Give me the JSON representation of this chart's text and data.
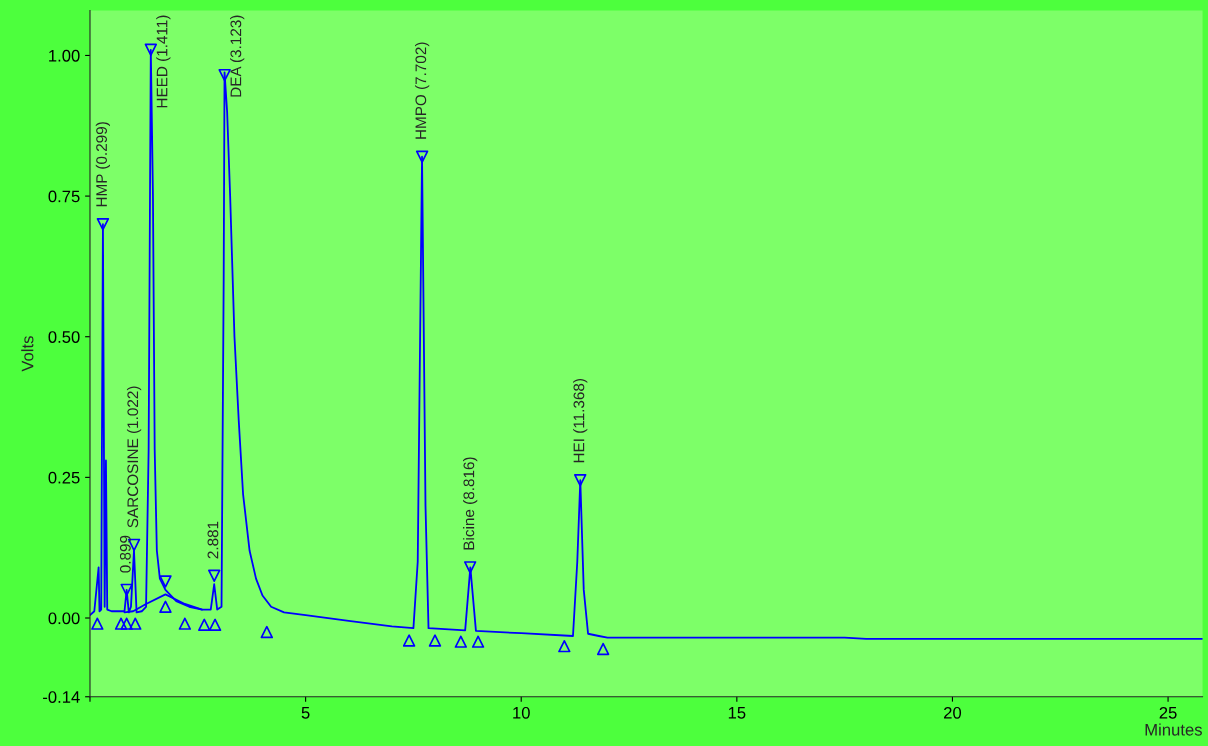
{
  "chart_data": {
    "type": "line",
    "xlabel": "Minutes",
    "ylabel": "Volts",
    "xlim": [
      0,
      25.8
    ],
    "ylim": [
      -0.14,
      1.08
    ],
    "xticks": [
      {
        "value": 0,
        "label": null
      },
      5,
      10,
      15,
      20,
      25
    ],
    "yticks": [
      {
        "value": -0.14,
        "label": "-0.14"
      },
      {
        "value": 0,
        "label": "0.00"
      },
      {
        "value": 0.25,
        "label": "0.25"
      },
      {
        "value": 0.5,
        "label": "0.50"
      },
      {
        "value": 0.75,
        "label": "0.75"
      },
      {
        "value": 1,
        "label": "1.00"
      }
    ],
    "grid": false,
    "legend": false,
    "series": [
      {
        "color": "#0000ff",
        "marker": "none",
        "line_style": "solid",
        "x": [
          0,
          0.1,
          0.2,
          0.22,
          0.26,
          0.3,
          0.34,
          0.37,
          0.4,
          0.5,
          0.7,
          0.8,
          0.85,
          0.9,
          0.95,
          1.02,
          1.08,
          1.2,
          1.3,
          1.36,
          1.41,
          1.46,
          1.5,
          1.55,
          1.62,
          1.75,
          2.0,
          2.3,
          2.6,
          2.8,
          2.88,
          2.95,
          3.05,
          3.1,
          3.12,
          3.18,
          3.25,
          3.35,
          3.45,
          3.55,
          3.7,
          3.85,
          4.0,
          4.2,
          4.5,
          5,
          6,
          7,
          7.5,
          7.6,
          7.7,
          7.78,
          7.85,
          8.7,
          8.82,
          8.95,
          10,
          11.2,
          11.3,
          11.37,
          11.45,
          11.55,
          11.8,
          12,
          17.5,
          18,
          25.8
        ],
        "values": [
          0.005,
          0.012,
          0.09,
          0.012,
          0.015,
          0.7,
          0.02,
          0.28,
          0.015,
          0.012,
          0.012,
          0.012,
          0.05,
          0.01,
          0.02,
          0.12,
          0.01,
          0.012,
          0.02,
          0.3,
          1.01,
          0.75,
          0.3,
          0.12,
          0.07,
          0.05,
          0.03,
          0.02,
          0.015,
          0.015,
          0.06,
          0.015,
          0.02,
          0.6,
          0.97,
          0.9,
          0.75,
          0.5,
          0.35,
          0.22,
          0.12,
          0.07,
          0.04,
          0.02,
          0.01,
          0.005,
          -0.005,
          -0.015,
          -0.018,
          0.1,
          0.82,
          0.2,
          -0.018,
          -0.022,
          0.09,
          -0.023,
          -0.027,
          -0.032,
          0.1,
          0.245,
          0.05,
          -0.028,
          -0.032,
          -0.035,
          -0.035,
          -0.037,
          -0.037
        ]
      },
      {
        "color": "#0000ff",
        "marker": "none",
        "line_style": "solid",
        "x": [
          0.8,
          1.0,
          1.3,
          1.75,
          2.2,
          2.6
        ],
        "values": [
          0.01,
          0.012,
          0.025,
          0.042,
          0.025,
          0.015
        ]
      },
      {
        "type": "scatter",
        "color": "#0000ff",
        "marker": "triangle_down",
        "x": [
          0.299,
          0.85,
          1.022,
          1.411,
          1.75,
          2.881,
          3.123,
          7.702,
          8.816,
          11.368
        ],
        "values": [
          0.7,
          0.05,
          0.13,
          1.01,
          0.065,
          0.075,
          0.965,
          0.82,
          0.09,
          0.245
        ]
      },
      {
        "type": "scatter",
        "color": "#0000ff",
        "marker": "triangle",
        "x": [
          0.17,
          0.72,
          0.85,
          1.05,
          1.75,
          2.2,
          2.65,
          2.9,
          4.1,
          7.4,
          8.0,
          8.6,
          9.0,
          11.0,
          11.9
        ],
        "values": [
          -0.01,
          -0.01,
          -0.01,
          -0.01,
          0.02,
          -0.01,
          -0.012,
          -0.012,
          -0.025,
          -0.04,
          -0.04,
          -0.042,
          -0.042,
          -0.05,
          -0.055
        ]
      }
    ],
    "annotations": [
      {
        "text": "HMP (0.299)",
        "x": 0.299,
        "y": 0.7
      },
      {
        "text": "0.899",
        "x": 0.85,
        "y": 0.05
      },
      {
        "text": "SARCOSINE (1.022)",
        "x": 1.022,
        "y": 0.13
      },
      {
        "text": "HEED (1.411)",
        "x": 1.411,
        "y": 1.01
      },
      {
        "text": "2.881",
        "x": 2.881,
        "y": 0.075
      },
      {
        "text": "DEA (3.123)",
        "x": 3.123,
        "y": 0.965
      },
      {
        "text": "HMPO (7.702)",
        "x": 7.702,
        "y": 0.82
      },
      {
        "text": "Bicine (8.816)",
        "x": 8.816,
        "y": 0.09
      },
      {
        "text": "HEI (11.368)",
        "x": 11.368,
        "y": 0.245
      }
    ]
  }
}
